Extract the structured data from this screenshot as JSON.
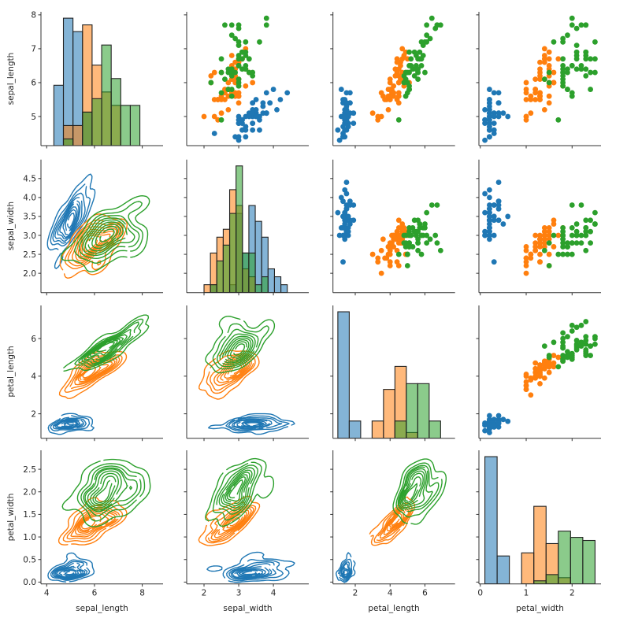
{
  "chart_data": {
    "type": "pairgrid",
    "upper": "scatter",
    "diag": "histogram",
    "lower": "kde",
    "grid": false,
    "legend": "none",
    "variables": [
      {
        "label": "sepal_length",
        "xlim": [
          3.76,
          8.87
        ],
        "ylim": [
          4.14,
          8.09
        ],
        "xticks": [
          4,
          6,
          8
        ],
        "xtick_labels": [
          "4",
          "6",
          "8"
        ],
        "yticks": [
          5,
          6,
          7,
          8
        ],
        "ytick_labels": [
          "5",
          "6",
          "7",
          "8"
        ],
        "hist_bins": {
          "start": 4.3,
          "end": 7.9,
          "n": 9
        }
      },
      {
        "label": "sepal_width",
        "xlim": [
          1.5,
          5.02
        ],
        "ylim": [
          1.49,
          5.0
        ],
        "xticks": [
          2,
          3,
          4
        ],
        "xtick_labels": [
          "2",
          "3",
          "4"
        ],
        "yticks": [
          2.0,
          2.5,
          3.0,
          3.5,
          4.0,
          4.5
        ],
        "ytick_labels": [
          "2.0",
          "2.5",
          "3.0",
          "3.5",
          "4.0",
          "4.5"
        ],
        "hist_bins": {
          "start": 2.0,
          "end": 4.4,
          "n": 13
        }
      },
      {
        "label": "petal_length",
        "xlim": [
          0.72,
          7.73
        ],
        "ylim": [
          0.7,
          7.76
        ],
        "xticks": [
          2,
          4,
          6
        ],
        "xtick_labels": [
          "2",
          "4",
          "6"
        ],
        "yticks": [
          2,
          4,
          6
        ],
        "ytick_labels": [
          "2",
          "4",
          "6"
        ],
        "hist_bins": {
          "start": 1.0,
          "end": 6.9,
          "n": 9
        }
      },
      {
        "label": "petal_width",
        "xlim": [
          -0.03,
          2.63
        ],
        "ylim": [
          -0.04,
          2.92
        ],
        "xticks": [
          0,
          1,
          2
        ],
        "xtick_labels": [
          "0",
          "1",
          "2"
        ],
        "yticks": [
          0.0,
          0.5,
          1.0,
          1.5,
          2.0,
          2.5
        ],
        "ytick_labels": [
          "0.0",
          "0.5",
          "1.0",
          "1.5",
          "2.0",
          "2.5"
        ],
        "hist_bins": {
          "start": 0.1,
          "end": 2.5,
          "n": 9
        }
      }
    ],
    "series": [
      {
        "color": "#1f77b4",
        "rows": [
          [
            5.1,
            3.5,
            1.4,
            0.2
          ],
          [
            4.9,
            3.0,
            1.4,
            0.2
          ],
          [
            4.7,
            3.2,
            1.3,
            0.2
          ],
          [
            4.6,
            3.1,
            1.5,
            0.2
          ],
          [
            5.0,
            3.6,
            1.4,
            0.2
          ],
          [
            5.4,
            3.9,
            1.7,
            0.4
          ],
          [
            4.6,
            3.4,
            1.4,
            0.3
          ],
          [
            5.0,
            3.4,
            1.5,
            0.2
          ],
          [
            4.4,
            2.9,
            1.4,
            0.2
          ],
          [
            4.9,
            3.1,
            1.5,
            0.1
          ],
          [
            5.4,
            3.7,
            1.5,
            0.2
          ],
          [
            4.8,
            3.4,
            1.6,
            0.2
          ],
          [
            4.8,
            3.0,
            1.4,
            0.1
          ],
          [
            4.3,
            3.0,
            1.1,
            0.1
          ],
          [
            5.8,
            4.0,
            1.2,
            0.2
          ],
          [
            5.7,
            4.4,
            1.5,
            0.4
          ],
          [
            5.4,
            3.9,
            1.3,
            0.4
          ],
          [
            5.1,
            3.5,
            1.4,
            0.3
          ],
          [
            5.7,
            3.8,
            1.7,
            0.3
          ],
          [
            5.1,
            3.8,
            1.5,
            0.3
          ],
          [
            5.4,
            3.4,
            1.7,
            0.2
          ],
          [
            5.1,
            3.7,
            1.5,
            0.4
          ],
          [
            4.6,
            3.6,
            1.0,
            0.2
          ],
          [
            5.1,
            3.3,
            1.7,
            0.5
          ],
          [
            4.8,
            3.4,
            1.9,
            0.2
          ],
          [
            5.0,
            3.0,
            1.6,
            0.2
          ],
          [
            5.0,
            3.4,
            1.6,
            0.4
          ],
          [
            5.2,
            3.5,
            1.5,
            0.2
          ],
          [
            5.2,
            3.4,
            1.4,
            0.2
          ],
          [
            4.7,
            3.2,
            1.6,
            0.2
          ],
          [
            4.8,
            3.1,
            1.6,
            0.2
          ],
          [
            5.4,
            3.4,
            1.5,
            0.4
          ],
          [
            5.2,
            4.1,
            1.5,
            0.1
          ],
          [
            5.5,
            4.2,
            1.4,
            0.2
          ],
          [
            4.9,
            3.1,
            1.5,
            0.2
          ],
          [
            5.0,
            3.2,
            1.2,
            0.2
          ],
          [
            5.5,
            3.5,
            1.3,
            0.2
          ],
          [
            4.9,
            3.6,
            1.4,
            0.1
          ],
          [
            4.4,
            3.0,
            1.3,
            0.2
          ],
          [
            5.1,
            3.4,
            1.5,
            0.2
          ],
          [
            5.0,
            3.5,
            1.3,
            0.3
          ],
          [
            4.5,
            2.3,
            1.3,
            0.3
          ],
          [
            4.4,
            3.2,
            1.3,
            0.2
          ],
          [
            5.0,
            3.5,
            1.6,
            0.6
          ],
          [
            5.1,
            3.8,
            1.9,
            0.4
          ],
          [
            4.8,
            3.0,
            1.4,
            0.3
          ],
          [
            5.1,
            3.8,
            1.6,
            0.2
          ],
          [
            4.6,
            3.2,
            1.4,
            0.2
          ],
          [
            5.3,
            3.7,
            1.5,
            0.2
          ],
          [
            5.0,
            3.3,
            1.4,
            0.2
          ]
        ]
      },
      {
        "color": "#ff7f0e",
        "rows": [
          [
            7.0,
            3.2,
            4.7,
            1.4
          ],
          [
            6.4,
            3.2,
            4.5,
            1.5
          ],
          [
            6.9,
            3.1,
            4.9,
            1.5
          ],
          [
            5.5,
            2.3,
            4.0,
            1.3
          ],
          [
            6.5,
            2.8,
            4.6,
            1.5
          ],
          [
            5.7,
            2.8,
            4.5,
            1.3
          ],
          [
            6.3,
            3.3,
            4.7,
            1.6
          ],
          [
            4.9,
            2.4,
            3.3,
            1.0
          ],
          [
            6.6,
            2.9,
            4.6,
            1.3
          ],
          [
            5.2,
            2.7,
            3.9,
            1.4
          ],
          [
            5.0,
            2.0,
            3.5,
            1.0
          ],
          [
            5.9,
            3.0,
            4.2,
            1.5
          ],
          [
            6.0,
            2.2,
            4.0,
            1.0
          ],
          [
            6.1,
            2.9,
            4.7,
            1.4
          ],
          [
            5.6,
            2.9,
            3.6,
            1.3
          ],
          [
            6.7,
            3.1,
            4.4,
            1.4
          ],
          [
            5.6,
            3.0,
            4.5,
            1.5
          ],
          [
            5.8,
            2.7,
            4.1,
            1.0
          ],
          [
            6.2,
            2.2,
            4.5,
            1.5
          ],
          [
            5.6,
            2.5,
            3.9,
            1.1
          ],
          [
            5.9,
            3.2,
            4.8,
            1.8
          ],
          [
            6.1,
            2.8,
            4.0,
            1.3
          ],
          [
            6.3,
            2.5,
            4.9,
            1.5
          ],
          [
            6.1,
            2.8,
            4.7,
            1.2
          ],
          [
            6.4,
            2.9,
            4.3,
            1.3
          ],
          [
            6.6,
            3.0,
            4.4,
            1.4
          ],
          [
            6.8,
            2.8,
            4.8,
            1.4
          ],
          [
            6.7,
            3.0,
            5.0,
            1.7
          ],
          [
            6.0,
            2.9,
            4.5,
            1.5
          ],
          [
            5.7,
            2.6,
            3.5,
            1.0
          ],
          [
            5.5,
            2.4,
            3.8,
            1.1
          ],
          [
            5.5,
            2.4,
            3.7,
            1.0
          ],
          [
            5.8,
            2.7,
            3.9,
            1.2
          ],
          [
            6.0,
            2.7,
            5.1,
            1.6
          ],
          [
            5.4,
            3.0,
            4.5,
            1.5
          ],
          [
            6.0,
            3.4,
            4.5,
            1.6
          ],
          [
            6.7,
            3.1,
            4.7,
            1.5
          ],
          [
            6.3,
            2.3,
            4.4,
            1.3
          ],
          [
            5.6,
            3.0,
            4.1,
            1.3
          ],
          [
            5.5,
            2.5,
            4.0,
            1.3
          ],
          [
            5.5,
            2.6,
            4.4,
            1.2
          ],
          [
            6.1,
            3.0,
            4.6,
            1.4
          ],
          [
            5.8,
            2.6,
            4.0,
            1.2
          ],
          [
            5.0,
            2.3,
            3.3,
            1.0
          ],
          [
            5.6,
            2.7,
            4.2,
            1.3
          ],
          [
            5.7,
            3.0,
            4.2,
            1.2
          ],
          [
            5.7,
            2.9,
            4.2,
            1.3
          ],
          [
            6.2,
            2.9,
            4.3,
            1.3
          ],
          [
            5.1,
            2.5,
            3.0,
            1.1
          ],
          [
            5.7,
            2.8,
            4.1,
            1.3
          ]
        ]
      },
      {
        "color": "#2ca02c",
        "rows": [
          [
            6.3,
            3.3,
            6.0,
            2.5
          ],
          [
            5.8,
            2.7,
            5.1,
            1.9
          ],
          [
            7.1,
            3.0,
            5.9,
            2.1
          ],
          [
            6.3,
            2.9,
            5.6,
            1.8
          ],
          [
            6.5,
            3.0,
            5.8,
            2.2
          ],
          [
            7.6,
            3.0,
            6.6,
            2.1
          ],
          [
            4.9,
            2.5,
            4.5,
            1.7
          ],
          [
            7.3,
            2.9,
            6.3,
            1.8
          ],
          [
            6.7,
            2.5,
            5.8,
            1.8
          ],
          [
            7.2,
            3.6,
            6.1,
            2.5
          ],
          [
            6.5,
            3.2,
            5.1,
            2.0
          ],
          [
            6.4,
            2.7,
            5.3,
            1.9
          ],
          [
            6.8,
            3.0,
            5.5,
            2.1
          ],
          [
            5.7,
            2.5,
            5.0,
            2.0
          ],
          [
            5.8,
            2.8,
            5.1,
            2.4
          ],
          [
            6.4,
            3.2,
            5.3,
            2.3
          ],
          [
            6.5,
            3.0,
            5.5,
            1.8
          ],
          [
            7.7,
            3.8,
            6.7,
            2.2
          ],
          [
            7.7,
            2.6,
            6.9,
            2.3
          ],
          [
            6.0,
            2.2,
            5.0,
            1.5
          ],
          [
            6.9,
            3.2,
            5.7,
            2.3
          ],
          [
            5.6,
            2.8,
            4.9,
            2.0
          ],
          [
            7.7,
            2.8,
            6.7,
            2.0
          ],
          [
            6.3,
            2.7,
            4.9,
            1.8
          ],
          [
            6.7,
            3.3,
            5.7,
            2.1
          ],
          [
            7.2,
            3.2,
            6.0,
            1.8
          ],
          [
            6.2,
            2.8,
            4.8,
            1.8
          ],
          [
            6.1,
            3.0,
            4.9,
            1.8
          ],
          [
            6.4,
            2.8,
            5.6,
            2.1
          ],
          [
            7.2,
            3.0,
            5.8,
            1.6
          ],
          [
            7.4,
            2.8,
            6.1,
            1.9
          ],
          [
            7.9,
            3.8,
            6.4,
            2.0
          ],
          [
            6.4,
            2.8,
            5.6,
            2.2
          ],
          [
            6.3,
            2.8,
            5.1,
            1.5
          ],
          [
            6.1,
            2.6,
            5.6,
            1.4
          ],
          [
            7.7,
            3.0,
            6.1,
            2.3
          ],
          [
            6.3,
            3.4,
            5.6,
            2.4
          ],
          [
            6.4,
            3.1,
            5.5,
            1.8
          ],
          [
            6.0,
            3.0,
            4.8,
            1.8
          ],
          [
            6.9,
            3.1,
            5.4,
            2.1
          ],
          [
            6.7,
            3.1,
            5.6,
            2.4
          ],
          [
            6.9,
            3.1,
            5.1,
            2.3
          ],
          [
            5.8,
            2.7,
            5.1,
            1.9
          ],
          [
            6.8,
            3.2,
            5.9,
            2.3
          ],
          [
            6.7,
            3.3,
            5.7,
            2.5
          ],
          [
            6.7,
            3.0,
            5.2,
            2.3
          ],
          [
            6.3,
            2.5,
            5.0,
            1.9
          ],
          [
            6.5,
            3.0,
            5.2,
            2.0
          ],
          [
            6.2,
            3.4,
            5.4,
            2.3
          ],
          [
            5.9,
            3.0,
            5.1,
            1.8
          ]
        ]
      }
    ],
    "kde_levels": 10,
    "kde_thresh": 0.05
  }
}
